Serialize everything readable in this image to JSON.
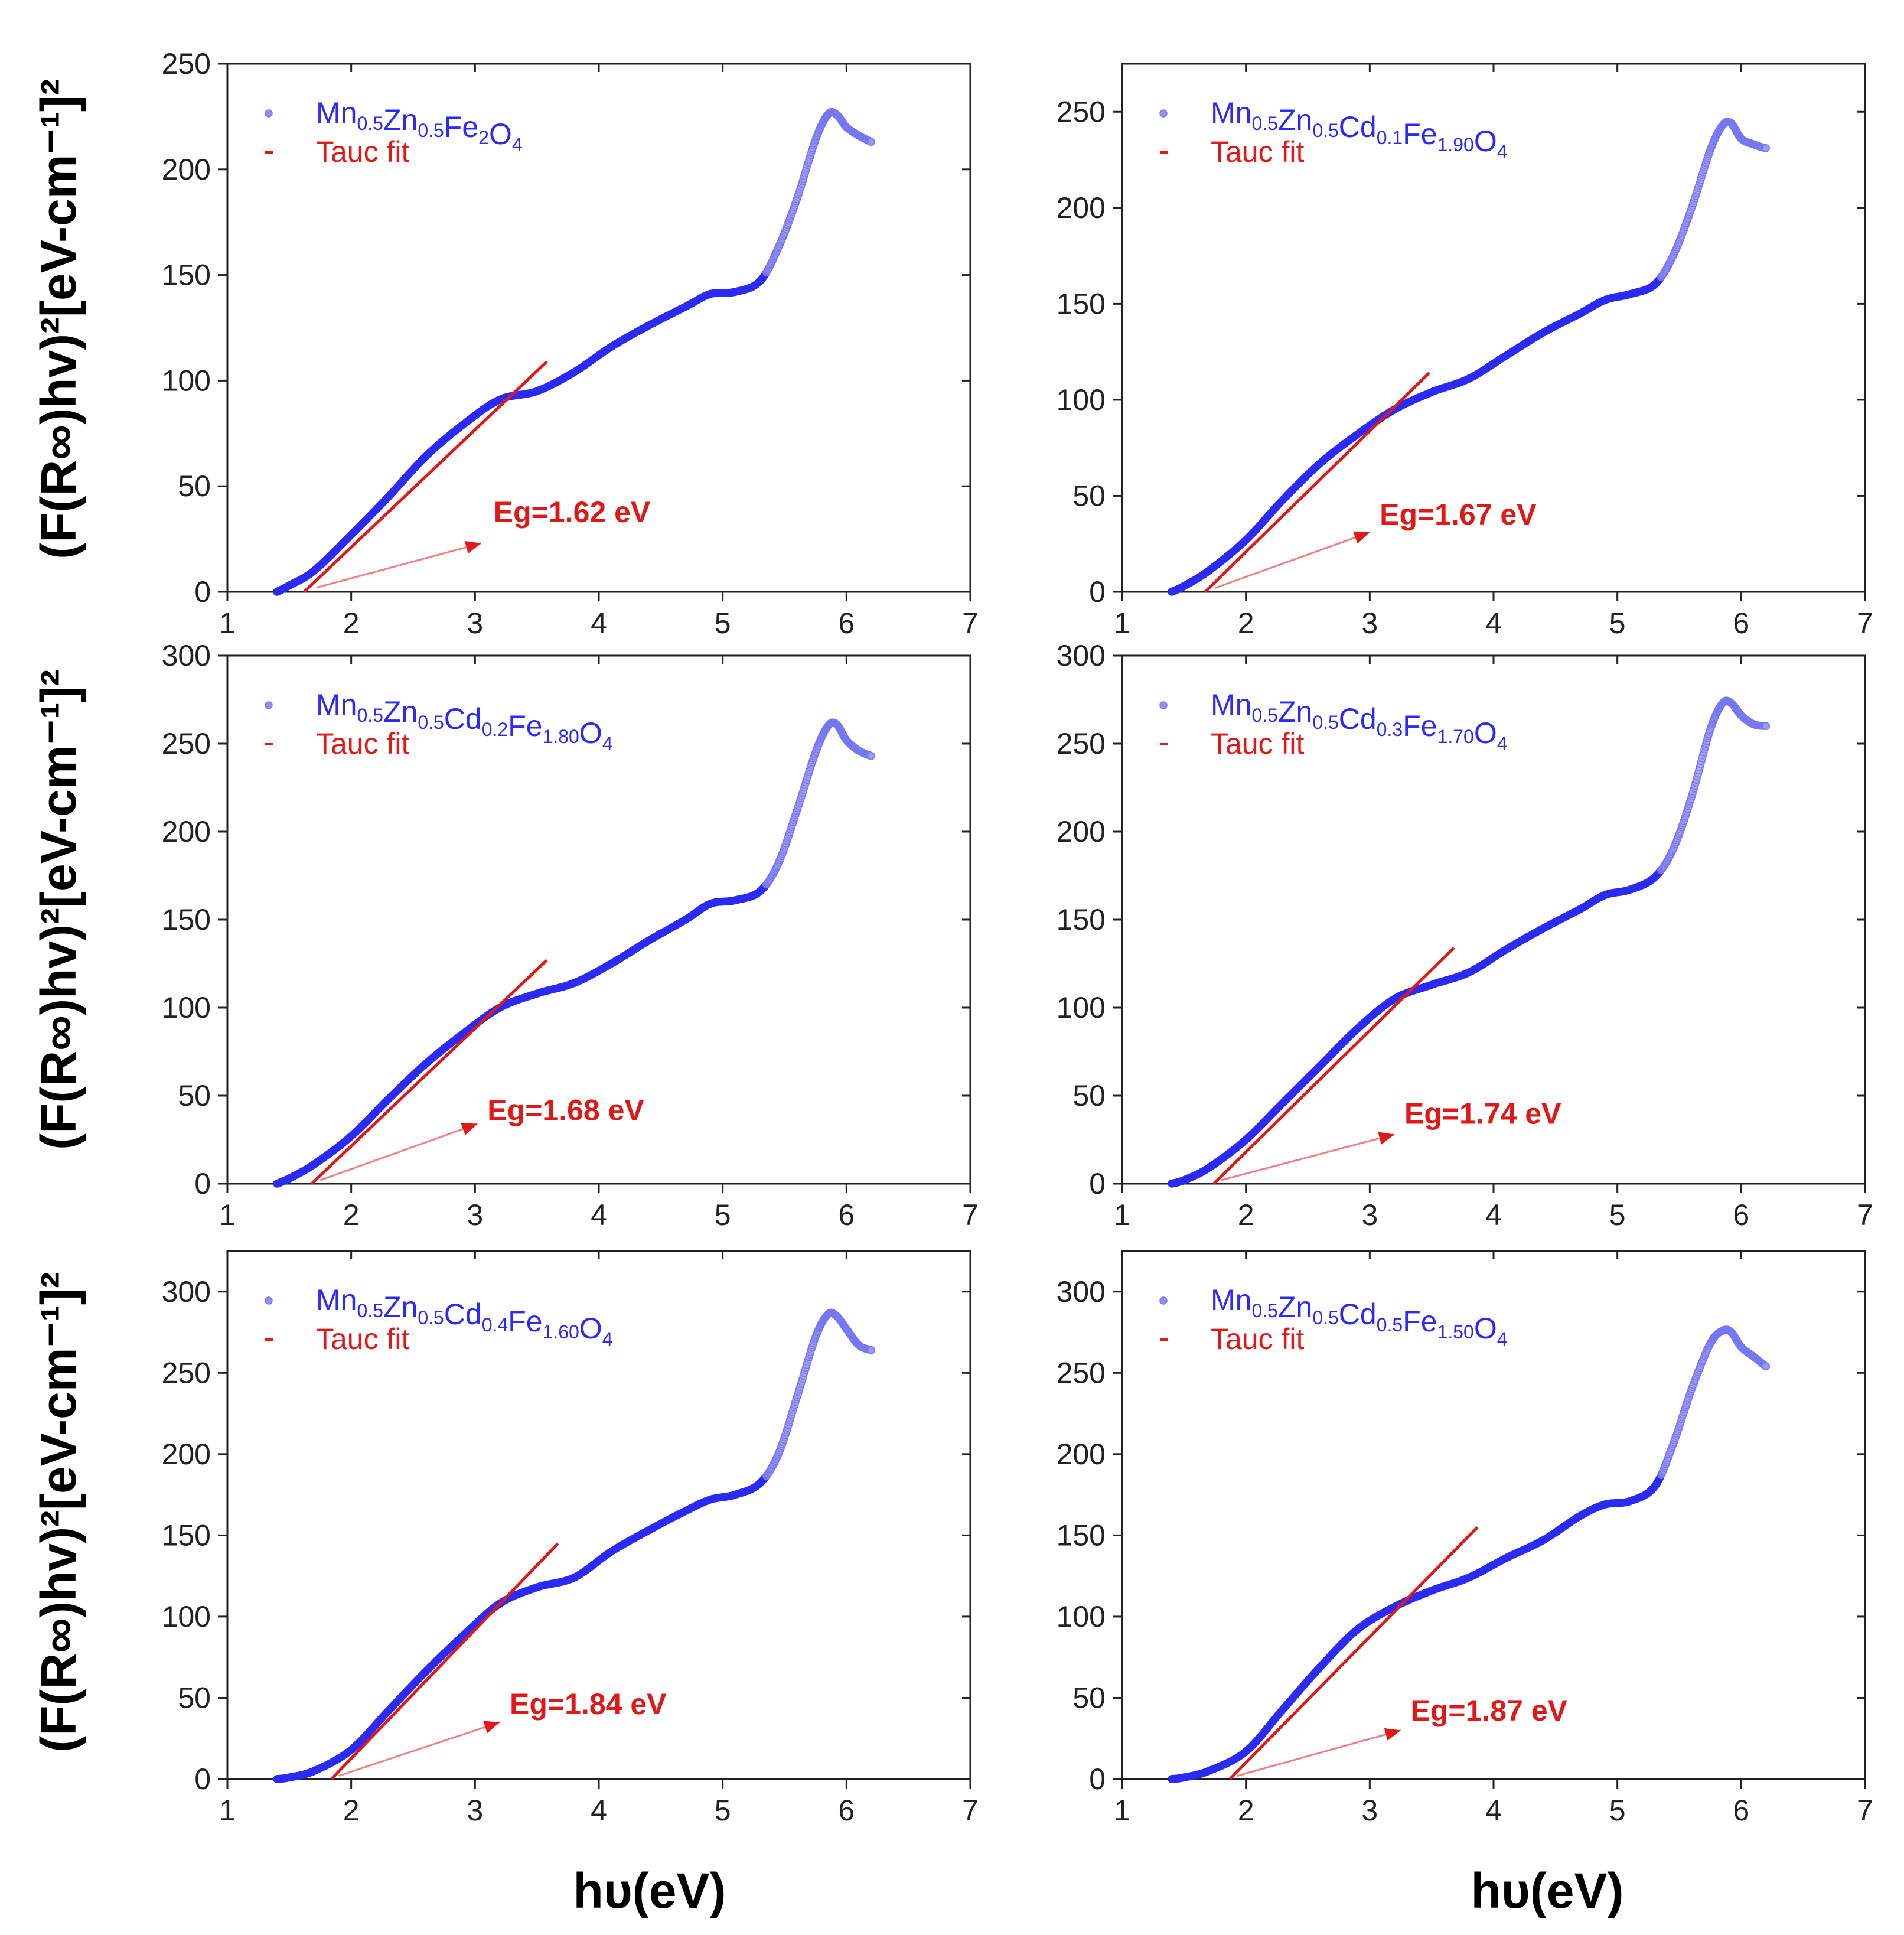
{
  "colors": {
    "data": "#2b2bf5",
    "fit": "#e01818",
    "axis": "#222222",
    "text": "#000000"
  },
  "figure": {
    "y_label": "(F(R∞)hv)²[eV-cm⁻¹]²",
    "x_label": "hυ(eV)"
  },
  "chart_data": [
    {
      "type": "scatter",
      "panel": "top-left",
      "xlim": [
        1,
        7
      ],
      "ylim": [
        0,
        250
      ],
      "x_ticks": [
        1,
        2,
        3,
        4,
        5,
        6,
        7
      ],
      "y_ticks": [
        0,
        50,
        100,
        150,
        200,
        250
      ],
      "legend": {
        "series_label": "Mn0.5Zn0.5Fe2O4",
        "fit_label": "Tauc fit"
      },
      "fit_line": {
        "x": [
          1.62,
          3.58
        ],
        "y": [
          0,
          109
        ]
      },
      "annotation": {
        "text": "Eg=1.62 eV",
        "value": 1.62,
        "unit": "eV",
        "arrow_from": [
          1.72,
          2
        ],
        "arrow_to": [
          3.05,
          23
        ],
        "text_at": [
          3.15,
          33
        ]
      },
      "series": {
        "name": "Mn0.5Zn0.5Fe2O4",
        "x": [
          1.4,
          1.5,
          1.7,
          2.0,
          2.3,
          2.6,
          2.9,
          3.2,
          3.5,
          3.8,
          4.1,
          4.4,
          4.7,
          4.9,
          5.1,
          5.3,
          5.45,
          5.6,
          5.75,
          5.85,
          5.92,
          6.0,
          6.1,
          6.2
        ],
        "y": [
          0,
          3,
          10,
          27,
          45,
          64,
          79,
          91,
          95,
          104,
          116,
          126,
          135,
          141,
          142,
          147,
          163,
          186,
          214,
          226,
          226,
          220,
          216,
          213
        ]
      }
    },
    {
      "type": "scatter",
      "panel": "top-right",
      "xlim": [
        1,
        7
      ],
      "ylim": [
        0,
        275
      ],
      "x_ticks": [
        1,
        2,
        3,
        4,
        5,
        6,
        7
      ],
      "y_ticks": [
        0,
        50,
        100,
        150,
        200,
        250
      ],
      "legend": {
        "series_label": "Mn0.5Zn0.5Cd0.1Fe1.90O4",
        "fit_label": "Tauc fit"
      },
      "fit_line": {
        "x": [
          1.67,
          3.48
        ],
        "y": [
          0,
          114
        ]
      },
      "annotation": {
        "text": "Eg=1.67 eV",
        "value": 1.67,
        "unit": "eV",
        "arrow_from": [
          1.75,
          2
        ],
        "arrow_to": [
          3.0,
          31
        ],
        "text_at": [
          3.08,
          35
        ]
      },
      "series": {
        "name": "Mn0.5Zn0.5Cd0.1Fe1.90O4",
        "x": [
          1.4,
          1.5,
          1.7,
          2.0,
          2.3,
          2.6,
          2.9,
          3.2,
          3.5,
          3.8,
          4.1,
          4.4,
          4.7,
          4.9,
          5.1,
          5.3,
          5.45,
          5.6,
          5.75,
          5.85,
          5.92,
          6.0,
          6.1,
          6.2
        ],
        "y": [
          0,
          3,
          11,
          27,
          48,
          67,
          82,
          95,
          104,
          111,
          123,
          135,
          145,
          152,
          155,
          160,
          175,
          200,
          230,
          243,
          244,
          236,
          233,
          231
        ]
      }
    },
    {
      "type": "scatter",
      "panel": "middle-left",
      "xlim": [
        1,
        7
      ],
      "ylim": [
        0,
        300
      ],
      "x_ticks": [
        1,
        2,
        3,
        4,
        5,
        6,
        7
      ],
      "y_ticks": [
        0,
        50,
        100,
        150,
        200,
        250,
        300
      ],
      "legend": {
        "series_label": "Mn0.5Zn0.5Cd0.2Fe1.80O4",
        "fit_label": "Tauc fit"
      },
      "fit_line": {
        "x": [
          1.68,
          3.58
        ],
        "y": [
          0,
          127
        ]
      },
      "annotation": {
        "text": "Eg=1.68 eV",
        "value": 1.68,
        "unit": "eV",
        "arrow_from": [
          1.75,
          2
        ],
        "arrow_to": [
          3.02,
          34
        ],
        "text_at": [
          3.1,
          36
        ]
      },
      "series": {
        "name": "Mn0.5Zn0.5Cd0.2Fe1.80O4",
        "x": [
          1.4,
          1.5,
          1.7,
          2.0,
          2.3,
          2.6,
          2.9,
          3.2,
          3.5,
          3.8,
          4.1,
          4.4,
          4.7,
          4.9,
          5.1,
          5.3,
          5.45,
          5.6,
          5.75,
          5.85,
          5.92,
          6.0,
          6.1,
          6.2
        ],
        "y": [
          0,
          3,
          11,
          27,
          48,
          68,
          85,
          100,
          108,
          114,
          125,
          138,
          150,
          159,
          161,
          166,
          182,
          212,
          245,
          260,
          261,
          252,
          246,
          243
        ]
      }
    },
    {
      "type": "scatter",
      "panel": "middle-right",
      "xlim": [
        1,
        7
      ],
      "ylim": [
        0,
        300
      ],
      "x_ticks": [
        1,
        2,
        3,
        4,
        5,
        6,
        7
      ],
      "y_ticks": [
        0,
        50,
        100,
        150,
        200,
        250,
        300
      ],
      "legend": {
        "series_label": "Mn0.5Zn0.5Cd0.3Fe1.70O4",
        "fit_label": "Tauc fit"
      },
      "fit_line": {
        "x": [
          1.74,
          3.68
        ],
        "y": [
          0,
          134
        ]
      },
      "annotation": {
        "text": "Eg=1.74 eV",
        "value": 1.74,
        "unit": "eV",
        "arrow_from": [
          1.8,
          2
        ],
        "arrow_to": [
          3.2,
          28
        ],
        "text_at": [
          3.28,
          34
        ]
      },
      "series": {
        "name": "Mn0.5Zn0.5Cd0.3Fe1.70O4",
        "x": [
          1.4,
          1.5,
          1.7,
          2.0,
          2.3,
          2.6,
          2.9,
          3.2,
          3.5,
          3.8,
          4.1,
          4.4,
          4.7,
          4.9,
          5.1,
          5.3,
          5.45,
          5.6,
          5.75,
          5.85,
          5.92,
          6.0,
          6.1,
          6.2
        ],
        "y": [
          0,
          2,
          9,
          25,
          46,
          67,
          88,
          105,
          113,
          120,
          133,
          145,
          156,
          164,
          167,
          174,
          190,
          220,
          258,
          273,
          273,
          266,
          261,
          260
        ]
      }
    },
    {
      "type": "scatter",
      "panel": "bottom-left",
      "xlim": [
        1,
        7
      ],
      "ylim": [
        0,
        325
      ],
      "x_ticks": [
        1,
        2,
        3,
        4,
        5,
        6,
        7
      ],
      "y_ticks": [
        0,
        50,
        100,
        150,
        200,
        250,
        300
      ],
      "legend": {
        "series_label": "Mn0.5Zn0.5Cd0.4Fe1.60O4",
        "fit_label": "Tauc fit"
      },
      "fit_line": {
        "x": [
          1.84,
          3.67
        ],
        "y": [
          0,
          145
        ]
      },
      "annotation": {
        "text": "Eg=1.84 eV",
        "value": 1.84,
        "unit": "eV",
        "arrow_from": [
          1.9,
          2
        ],
        "arrow_to": [
          3.2,
          35
        ],
        "text_at": [
          3.28,
          40
        ]
      },
      "series": {
        "name": "Mn0.5Zn0.5Cd0.4Fe1.60O4",
        "x": [
          1.4,
          1.5,
          1.7,
          2.0,
          2.3,
          2.6,
          2.9,
          3.2,
          3.5,
          3.8,
          4.1,
          4.4,
          4.7,
          4.9,
          5.1,
          5.3,
          5.45,
          5.6,
          5.75,
          5.85,
          5.92,
          6.0,
          6.1,
          6.2
        ],
        "y": [
          0,
          1,
          5,
          18,
          42,
          66,
          88,
          108,
          118,
          124,
          140,
          153,
          165,
          172,
          175,
          182,
          200,
          235,
          272,
          286,
          285,
          277,
          267,
          264
        ]
      }
    },
    {
      "type": "scatter",
      "panel": "bottom-right",
      "xlim": [
        1,
        7
      ],
      "ylim": [
        0,
        325
      ],
      "x_ticks": [
        1,
        2,
        3,
        4,
        5,
        6,
        7
      ],
      "y_ticks": [
        0,
        50,
        100,
        150,
        200,
        250,
        300
      ],
      "legend": {
        "series_label": "Mn0.5Zn0.5Cd0.5Fe1.50O4",
        "fit_label": "Tauc fit"
      },
      "fit_line": {
        "x": [
          1.87,
          3.87
        ],
        "y": [
          0,
          155
        ]
      },
      "annotation": {
        "text": "Eg=1.87 eV",
        "value": 1.87,
        "unit": "eV",
        "arrow_from": [
          1.93,
          2
        ],
        "arrow_to": [
          3.25,
          30
        ],
        "text_at": [
          3.33,
          36
        ]
      },
      "series": {
        "name": "Mn0.5Zn0.5Cd0.5Fe1.50O4",
        "x": [
          1.4,
          1.5,
          1.7,
          2.0,
          2.3,
          2.6,
          2.9,
          3.2,
          3.5,
          3.8,
          4.1,
          4.4,
          4.7,
          4.9,
          5.1,
          5.3,
          5.45,
          5.6,
          5.75,
          5.85,
          5.92,
          6.0,
          6.1,
          6.2
        ],
        "y": [
          0,
          1,
          5,
          17,
          43,
          69,
          92,
          106,
          116,
          124,
          136,
          147,
          162,
          169,
          171,
          180,
          206,
          240,
          268,
          276,
          275,
          266,
          260,
          254
        ]
      }
    }
  ]
}
